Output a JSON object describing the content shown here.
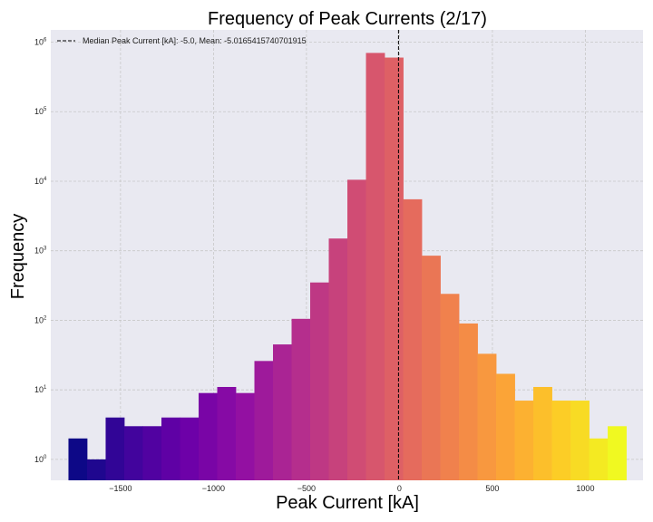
{
  "chart_data": {
    "type": "bar",
    "title": "Frequency of Peak Currents (2/17)",
    "xlabel": "Peak Current [kA]",
    "ylabel": "Frequency",
    "yscale": "log",
    "xlim": [
      -1875,
      1310
    ],
    "ylim": [
      0.5,
      1500000
    ],
    "grid": true,
    "x_ticks": [
      -1500,
      -1000,
      -500,
      0,
      500,
      1000
    ],
    "x_tick_labels": [
      "−1500",
      "−1000",
      "−500",
      "0",
      "500",
      "1000"
    ],
    "y_ticks": [
      {
        "value": 1,
        "base": "10",
        "exp": "0"
      },
      {
        "value": 10,
        "base": "10",
        "exp": "1"
      },
      {
        "value": 100,
        "base": "10",
        "exp": "2"
      },
      {
        "value": 1000,
        "base": "10",
        "exp": "3"
      },
      {
        "value": 10000,
        "base": "10",
        "exp": "4"
      },
      {
        "value": 100000,
        "base": "10",
        "exp": "5"
      },
      {
        "value": 1000000,
        "base": "10",
        "exp": "6"
      }
    ],
    "bin_edges": [
      -1780,
      -1680,
      -1580,
      -1480,
      -1380,
      -1280,
      -1180,
      -1080,
      -980,
      -880,
      -780,
      -680,
      -580,
      -480,
      -380,
      -280,
      -180,
      -80,
      20,
      120,
      220,
      320,
      420,
      520,
      620,
      720,
      820,
      920,
      1020,
      1120,
      1220
    ],
    "counts": [
      2,
      1,
      4,
      3,
      3,
      4,
      4,
      9,
      11,
      9,
      26,
      45,
      105,
      350,
      1500,
      10500,
      700000,
      600000,
      5500,
      850,
      240,
      90,
      33,
      17,
      7,
      11,
      7,
      7,
      2,
      3
    ],
    "colormap": "plasma",
    "median_line": {
      "x": -5.0,
      "style": "dashed",
      "color": "#000000"
    },
    "legend": {
      "placement": "top-left",
      "entries": [
        "Median Peak Current [kA]: -5.0, Mean: -5.0165415740701915"
      ]
    }
  }
}
